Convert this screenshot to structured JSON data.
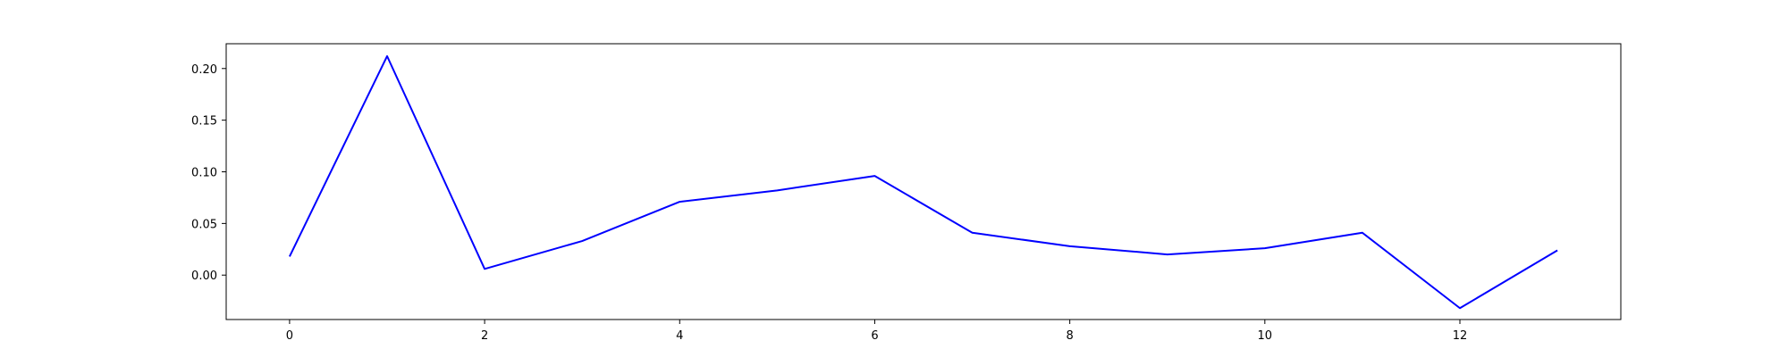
{
  "chart_data": {
    "type": "line",
    "title": "",
    "xlabel": "",
    "ylabel": "",
    "x": [
      0,
      1,
      2,
      3,
      4,
      5,
      6,
      7,
      8,
      9,
      10,
      11,
      12,
      13
    ],
    "series": [
      {
        "values": [
          0.018,
          0.212,
          0.006,
          0.033,
          0.071,
          0.082,
          0.096,
          0.041,
          0.028,
          0.02,
          0.026,
          0.041,
          -0.032,
          0.024
        ],
        "color": "#0000ff"
      }
    ],
    "xlim": [
      -0.65,
      13.65
    ],
    "ylim": [
      -0.043,
      0.224
    ],
    "xticks": [
      0,
      2,
      4,
      6,
      8,
      10,
      12
    ],
    "xtick_labels": [
      "0",
      "2",
      "4",
      "6",
      "8",
      "10",
      "12"
    ],
    "yticks": [
      0.0,
      0.05,
      0.1,
      0.15,
      0.2
    ],
    "ytick_labels": [
      "0.00",
      "0.05",
      "0.10",
      "0.15",
      "0.20"
    ],
    "grid": false,
    "legend": "none"
  }
}
